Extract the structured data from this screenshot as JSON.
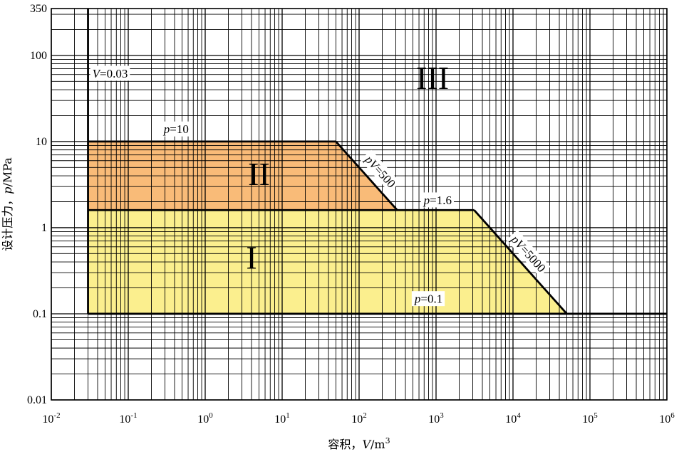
{
  "chart_data": {
    "type": "area",
    "xscale": "log",
    "yscale": "log",
    "xlim": [
      0.01,
      1000000
    ],
    "ylim": [
      0.01,
      350
    ],
    "grid": true,
    "xlabel": "容积，V/m³",
    "xlabel_parts": {
      "prefix": "容积，",
      "var": "V",
      "unit": "/m",
      "sup": "3"
    },
    "ylabel": "设计压力，p/MPa",
    "ylabel_parts": {
      "prefix": "设计压力，",
      "var": "p",
      "unit": "/MPa"
    },
    "x_ticks": [
      {
        "value": 0.01,
        "base": "10",
        "exp": "-2"
      },
      {
        "value": 0.1,
        "base": "10",
        "exp": "-1"
      },
      {
        "value": 1,
        "base": "10",
        "exp": "0"
      },
      {
        "value": 10,
        "base": "10",
        "exp": "1"
      },
      {
        "value": 100,
        "base": "10",
        "exp": "2"
      },
      {
        "value": 1000,
        "base": "10",
        "exp": "3"
      },
      {
        "value": 10000,
        "base": "10",
        "exp": "4"
      },
      {
        "value": 100000,
        "base": "10",
        "exp": "5"
      },
      {
        "value": 1000000,
        "base": "10",
        "exp": "6"
      }
    ],
    "y_ticks": [
      {
        "value": 0.01,
        "label": "0.01"
      },
      {
        "value": 0.1,
        "label": "0.1"
      },
      {
        "value": 1,
        "label": "1"
      },
      {
        "value": 10,
        "label": "10"
      },
      {
        "value": 100,
        "label": "100"
      },
      {
        "value": 350,
        "label": "350"
      }
    ],
    "regions": [
      {
        "name": "I",
        "color": "#fbef8e",
        "points": [
          [
            0.03,
            0.1
          ],
          [
            50000,
            0.1
          ],
          [
            3125,
            1.6
          ],
          [
            0.03,
            1.6
          ]
        ]
      },
      {
        "name": "II",
        "color": "#f9bb78",
        "points": [
          [
            0.03,
            1.6
          ],
          [
            312.5,
            1.6
          ],
          [
            50,
            10
          ],
          [
            0.03,
            10
          ]
        ]
      }
    ],
    "region_labels": [
      {
        "text": "I",
        "x": 4,
        "y": 0.45
      },
      {
        "text": "II",
        "x": 5,
        "y": 4.2
      },
      {
        "text": "III",
        "x": 900,
        "y": 55
      }
    ],
    "boundary_lines": [
      {
        "name": "V=0.03",
        "points": [
          [
            0.03,
            0.1
          ],
          [
            0.03,
            350
          ]
        ]
      },
      {
        "name": "p=10",
        "points": [
          [
            0.03,
            10
          ],
          [
            50,
            10
          ]
        ]
      },
      {
        "name": "pV=500",
        "points": [
          [
            50,
            10
          ],
          [
            312.5,
            1.6
          ]
        ]
      },
      {
        "name": "p=1.6",
        "points": [
          [
            0.03,
            1.6
          ],
          [
            3125,
            1.6
          ]
        ]
      },
      {
        "name": "pV=5000",
        "points": [
          [
            3125,
            1.6
          ],
          [
            50000,
            0.1
          ]
        ]
      },
      {
        "name": "p=0.1",
        "points": [
          [
            0.03,
            0.1
          ],
          [
            1000000,
            0.1
          ]
        ]
      }
    ],
    "annotations": [
      {
        "id": "v003",
        "var": "V",
        "rest": "=0.03",
        "x": 0.058,
        "y": 62
      },
      {
        "id": "p10",
        "var": "p",
        "rest": "=10",
        "x": 0.42,
        "y": 14
      },
      {
        "id": "pv500",
        "var": "pV",
        "rest": "=500",
        "x": 190,
        "y": 4.5,
        "rotate": 48
      },
      {
        "id": "p16",
        "var": "p",
        "rest": "=1.6",
        "x": 1050,
        "y": 2.1
      },
      {
        "id": "pv5000",
        "var": "pV",
        "rest": "=5000",
        "x": 16000,
        "y": 0.5,
        "rotate": 48
      },
      {
        "id": "p01",
        "var": "p",
        "rest": "=0.1",
        "x": 800,
        "y": 0.15
      }
    ]
  }
}
